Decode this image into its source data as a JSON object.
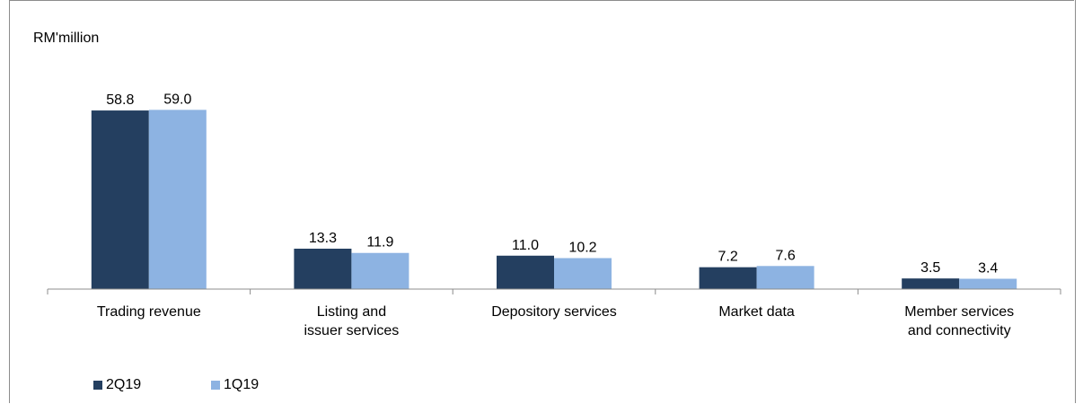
{
  "chart_data": {
    "type": "bar",
    "ylabel": "RM'million",
    "categories": [
      [
        "Trading revenue"
      ],
      [
        "Listing and",
        "issuer services"
      ],
      [
        "Depository services"
      ],
      [
        "Market data"
      ],
      [
        "Member services",
        "and connectivity"
      ]
    ],
    "series": [
      {
        "name": "2Q19",
        "color": "#243f60",
        "values": [
          58.8,
          13.3,
          11.0,
          7.2,
          3.5
        ]
      },
      {
        "name": "1Q19",
        "color": "#8db3e2",
        "values": [
          59.0,
          11.9,
          10.2,
          7.6,
          3.4
        ]
      }
    ],
    "value_labels": [
      [
        "58.8",
        "13.3",
        "11.0",
        "7.2",
        "3.5"
      ],
      [
        "59.0",
        "11.9",
        "10.2",
        "7.6",
        "3.4"
      ]
    ],
    "ylim": [
      0,
      60
    ],
    "grid": false,
    "legend_position": "bottom-left"
  }
}
